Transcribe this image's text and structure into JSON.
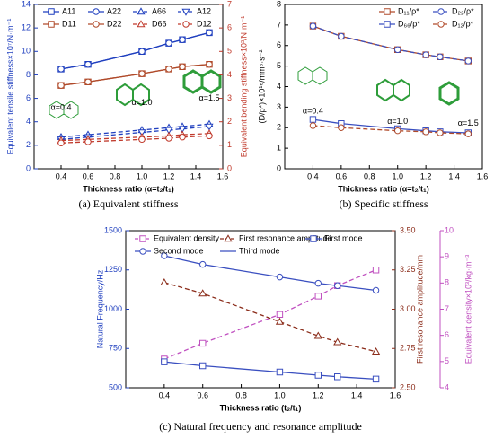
{
  "chart_data": [
    {
      "type": "line",
      "caption": "(a) Equivalent stiffness",
      "xlabel": "Thickness ratio (α=t₂/t₁)",
      "ylabel": "Equivalent tensile stiffness×10⁷/N·m⁻¹",
      "y2label": "Equivalent bending stiffness×10³/N·m⁻¹",
      "ycolor": "#1f3fbf",
      "y2color": "#c0392b",
      "x": [
        0.4,
        0.6,
        1.0,
        1.2,
        1.3,
        1.5
      ],
      "xlim": [
        0.2,
        1.6
      ],
      "xticks": [
        0.4,
        0.6,
        0.8,
        {
          "value": 1.0,
          "label": "1.0"
        },
        1.2,
        1.4,
        1.6
      ],
      "ylim": [
        0,
        14
      ],
      "yticks": [
        0,
        2,
        4,
        6,
        8,
        10,
        12,
        14
      ],
      "y2lim": [
        0,
        7
      ],
      "y2ticks": [
        0,
        1,
        2,
        3,
        4,
        5,
        6,
        7
      ],
      "annotations": [
        "α=0.4",
        "α=1.0",
        "α=1.5"
      ],
      "series": [
        {
          "name": "A11",
          "color": "#1f3fbf",
          "marker": "square",
          "dash": false,
          "values": [
            8.5,
            8.9,
            10.0,
            10.7,
            11.0,
            11.6
          ]
        },
        {
          "name": "A22",
          "color": "#1f3fbf",
          "marker": "circle",
          "dash": false,
          "values": [
            8.5,
            8.9,
            10.0,
            10.7,
            11.0,
            11.6
          ]
        },
        {
          "name": "A66",
          "color": "#1f3fbf",
          "marker": "triangle",
          "dash": true,
          "values": [
            2.7,
            2.9,
            3.3,
            3.5,
            3.6,
            3.8
          ]
        },
        {
          "name": "A12",
          "color": "#1f3fbf",
          "marker": "down",
          "dash": true,
          "values": [
            2.5,
            2.7,
            3.1,
            3.3,
            3.4,
            3.6
          ]
        },
        {
          "name": "D11",
          "color": "#b04a2a",
          "marker": "square",
          "dash": false,
          "axis": "y2",
          "values": [
            3.55,
            3.7,
            4.05,
            4.25,
            4.35,
            4.45
          ]
        },
        {
          "name": "D22",
          "color": "#b04a2a",
          "marker": "circle",
          "dash": false,
          "axis": "y2",
          "values": [
            3.55,
            3.7,
            4.05,
            4.25,
            4.35,
            4.45
          ]
        },
        {
          "name": "D66",
          "color": "#c0392b",
          "marker": "triangle",
          "dash": true,
          "axis": "y2",
          "values": [
            1.2,
            1.25,
            1.35,
            1.4,
            1.45,
            1.5
          ]
        },
        {
          "name": "D12",
          "color": "#c0392b",
          "marker": "circle",
          "dash": true,
          "axis": "y2",
          "values": [
            1.1,
            1.15,
            1.25,
            1.3,
            1.35,
            1.4
          ]
        }
      ]
    },
    {
      "type": "line",
      "caption": "(b) Specific stiffness",
      "xlabel": "Thickness ratio (α=t₂/t₁)",
      "ylabel": "(D/ρ*)×10¹⁶/mm⁶·s⁻²",
      "ycolor": "#000000",
      "x": [
        0.4,
        0.6,
        1.0,
        1.2,
        1.3,
        1.5
      ],
      "xlim": [
        0.2,
        1.6
      ],
      "xticks": [
        0.4,
        0.6,
        0.8,
        {
          "value": 1.0,
          "label": "1.0"
        },
        1.2,
        1.4,
        1.6
      ],
      "ylim": [
        0,
        8
      ],
      "yticks": [
        0,
        1,
        2,
        3,
        4,
        5,
        6,
        7,
        8
      ],
      "annotations": [
        "α=0.4",
        "α=1.0",
        "α=1.5"
      ],
      "series": [
        {
          "name": "D₁₁/ρ*",
          "color": "#b04a2a",
          "marker": "square",
          "dash": false,
          "values": [
            6.95,
            6.45,
            5.8,
            5.55,
            5.45,
            5.25
          ]
        },
        {
          "name": "D₂₂/ρ*",
          "color": "#3a4fc0",
          "marker": "circle",
          "dash": true,
          "values": [
            6.95,
            6.45,
            5.8,
            5.55,
            5.45,
            5.25
          ]
        },
        {
          "name": "D₆₆/ρ*",
          "color": "#3a4fc0",
          "marker": "square",
          "dash": false,
          "values": [
            2.4,
            2.2,
            1.95,
            1.85,
            1.8,
            1.75
          ]
        },
        {
          "name": "D₁₂/ρ*",
          "color": "#b04a2a",
          "marker": "circle",
          "dash": true,
          "values": [
            2.1,
            2.0,
            1.85,
            1.8,
            1.75,
            1.7
          ]
        }
      ]
    },
    {
      "type": "line",
      "caption": "(c) Natural frequency and resonance amplitude",
      "xlabel": "Thickness ratio (t₂/t₁)",
      "ylabel": "Natural Frequency/Hz",
      "y2label": "First resonance amplitude/mm",
      "y3label": "Equivalent density×10³/kg·m⁻³",
      "ycolor": "#1f3fbf",
      "y2color": "#8b2c1a",
      "y3color": "#c050c0",
      "x": [
        0.4,
        0.6,
        1.0,
        1.2,
        1.3,
        1.5
      ],
      "xlim": [
        0.2,
        1.6
      ],
      "xticks": [
        0.4,
        0.6,
        0.8,
        {
          "value": 1.0,
          "label": "1.0"
        },
        1.2,
        1.4,
        1.6
      ],
      "ylim": [
        500,
        1500
      ],
      "yticks": [
        500,
        750,
        1000,
        1250,
        1500
      ],
      "y2lim": [
        2.5,
        3.5
      ],
      "y2ticks": [
        {
          "value": 2.5,
          "label": "2.50"
        },
        2.75,
        {
          "value": 3.0,
          "label": "3.00"
        },
        3.25,
        {
          "value": 3.5,
          "label": "3.50"
        }
      ],
      "y3lim": [
        4,
        10
      ],
      "y3ticks": [
        4,
        5,
        6,
        7,
        8,
        9,
        10
      ],
      "series": [
        {
          "name": "Equivalent density",
          "color": "#c050c0",
          "marker": "square",
          "dash": true,
          "axis": "y3",
          "values": [
            5.1,
            5.7,
            6.8,
            7.5,
            7.9,
            8.5
          ]
        },
        {
          "name": "First resonance amplitude",
          "color": "#8b2c1a",
          "marker": "triangle",
          "dash": true,
          "axis": "y2",
          "values": [
            3.17,
            3.1,
            2.92,
            2.83,
            2.79,
            2.73
          ]
        },
        {
          "name": "First mode",
          "color": "#3a4fc0",
          "marker": "square",
          "dash": false,
          "values": [
            665,
            640,
            600,
            580,
            570,
            555
          ]
        },
        {
          "name": "Second mode",
          "color": "#3a4fc0",
          "marker": "circle",
          "dash": false,
          "values": [
            1340,
            1285,
            1205,
            1165,
            1150,
            1120
          ]
        },
        {
          "name": "Third mode",
          "color": "#3a4fc0",
          "marker": "none",
          "dash": false,
          "values": [
            null,
            null,
            null,
            null,
            null,
            null
          ]
        }
      ]
    }
  ]
}
